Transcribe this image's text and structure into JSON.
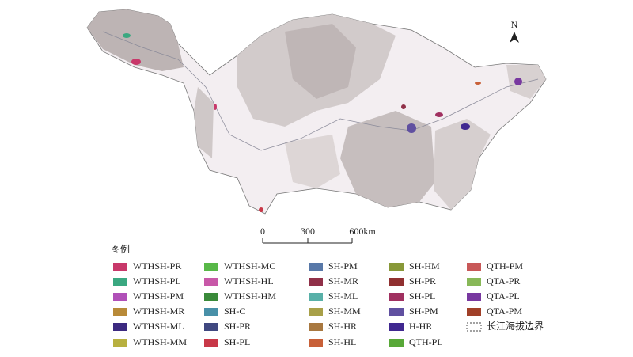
{
  "north": "N",
  "scale_bar": {
    "labels": [
      "0",
      "300",
      "600km"
    ]
  },
  "legend": {
    "title": "图例",
    "items": [
      {
        "name": "WTHSH-PR",
        "color": "#c8386a"
      },
      {
        "name": "WTHSH-PL",
        "color": "#3aa880"
      },
      {
        "name": "WTHSH-PM",
        "color": "#b050b8"
      },
      {
        "name": "WTHSH-MR",
        "color": "#b88a38"
      },
      {
        "name": "WTHSH-ML",
        "color": "#3c2a80"
      },
      {
        "name": "WTHSH-MM",
        "color": "#b8b040"
      },
      {
        "name": "WTHSH-MC",
        "color": "#58b848"
      },
      {
        "name": "WTHSH-HL",
        "color": "#c858a8"
      },
      {
        "name": "WTHSH-HM",
        "color": "#3a8a3a"
      },
      {
        "name": "SH-C",
        "color": "#4890a8"
      },
      {
        "name": "SH-PR",
        "color": "#404880"
      },
      {
        "name": "SH-PL",
        "color": "#c83848"
      },
      {
        "name": "SH-PM",
        "color": "#5878a8"
      },
      {
        "name": "SH-MR",
        "color": "#903048"
      },
      {
        "name": "SH-ML",
        "color": "#58b0a8"
      },
      {
        "name": "SH-MM",
        "color": "#a8a048"
      },
      {
        "name": "SH-HR",
        "color": "#a87840"
      },
      {
        "name": "SH-HL",
        "color": "#c86038"
      },
      {
        "name": "SH-HM",
        "color": "#889838"
      },
      {
        "name": "SH-PR",
        "color": "#903030"
      },
      {
        "name": "SH-PL",
        "color": "#a03060"
      },
      {
        "name": "SH-PM",
        "color": "#6050a0"
      },
      {
        "name": "H-HR",
        "color": "#402890"
      },
      {
        "name": "QTH-PL",
        "color": "#58a838"
      },
      {
        "name": "QTH-PM",
        "color": "#c85858"
      },
      {
        "name": "QTA-PR",
        "color": "#88b858"
      },
      {
        "name": "QTA-PL",
        "color": "#7838a0"
      },
      {
        "name": "QTA-PM",
        "color": "#a04028"
      },
      {
        "name": "长江海拔边界",
        "swatch": "dashed"
      }
    ]
  }
}
